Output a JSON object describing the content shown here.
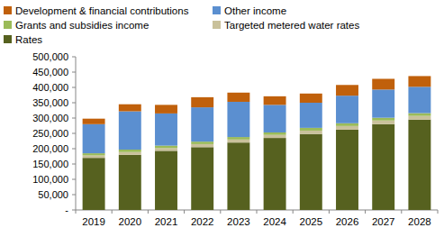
{
  "chart_data": {
    "type": "bar",
    "stacked": true,
    "grid": false,
    "legend": "top",
    "categories": [
      "2019",
      "2020",
      "2021",
      "2022",
      "2023",
      "2024",
      "2025",
      "2026",
      "2027",
      "2028"
    ],
    "series": [
      {
        "name": "Rates",
        "color": "#56611f",
        "values": [
          170000,
          180000,
          193000,
          205000,
          220000,
          235000,
          248000,
          262000,
          280000,
          295000
        ]
      },
      {
        "name": "Targeted metered water rates",
        "color": "#c9c19b",
        "values": [
          8000,
          9000,
          9000,
          10000,
          10000,
          10000,
          11000,
          12000,
          12000,
          12000
        ]
      },
      {
        "name": "Grants and subsidies income",
        "color": "#9bbb59",
        "values": [
          7000,
          8000,
          8000,
          8000,
          8000,
          8000,
          9000,
          9000,
          9000,
          9000
        ]
      },
      {
        "name": "Other income",
        "color": "#5b8fd0",
        "values": [
          95000,
          125000,
          105000,
          112000,
          115000,
          90000,
          82000,
          90000,
          92000,
          86000
        ]
      },
      {
        "name": "Development & financial contributions",
        "color": "#c0600b",
        "values": [
          18000,
          23000,
          28000,
          33000,
          30000,
          28000,
          30000,
          35000,
          35000,
          35000
        ]
      }
    ],
    "ylim": [
      0,
      500000
    ],
    "yticks": [
      {
        "value": 0,
        "label": "-"
      },
      {
        "value": 50000,
        "label": "50,000"
      },
      {
        "value": 100000,
        "label": "100,000"
      },
      {
        "value": 150000,
        "label": "150,000"
      },
      {
        "value": 200000,
        "label": "200,000"
      },
      {
        "value": 250000,
        "label": "250,000"
      },
      {
        "value": 300000,
        "label": "300,000"
      },
      {
        "value": 350000,
        "label": "350,000"
      },
      {
        "value": 400000,
        "label": "400,000"
      },
      {
        "value": 450000,
        "label": "450,000"
      },
      {
        "value": 500000,
        "label": "500,000"
      }
    ]
  }
}
